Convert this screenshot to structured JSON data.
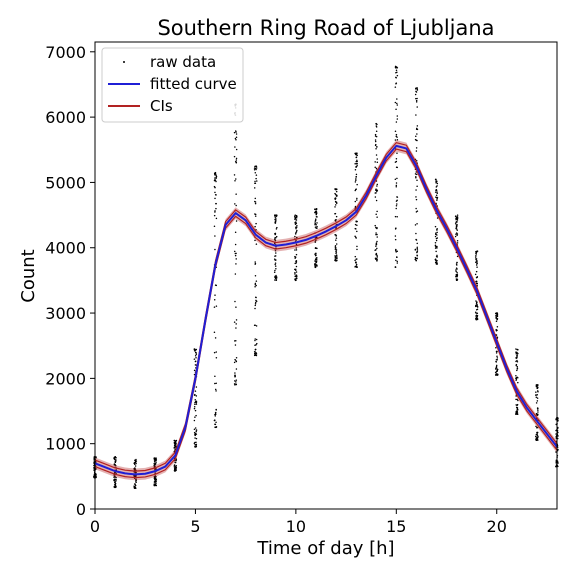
{
  "chart_data": {
    "type": "line",
    "title": "Southern Ring Road of Ljubljana",
    "xlabel": "Time of day [h]",
    "ylabel": "Count",
    "xlim": [
      0,
      23
    ],
    "ylim": [
      0,
      7150
    ],
    "x_ticks": [
      0,
      5,
      10,
      15,
      20
    ],
    "x_tick_labels": [
      "0",
      "5",
      "10",
      "15",
      "20"
    ],
    "y_ticks": [
      0,
      1000,
      2000,
      3000,
      4000,
      5000,
      6000,
      7000
    ],
    "y_tick_labels": [
      "0",
      "1000",
      "2000",
      "3000",
      "4000",
      "5000",
      "6000",
      "7000"
    ],
    "grid": false,
    "legend_position": "top-left",
    "legend": [
      {
        "label": "raw data",
        "marker": "dot",
        "color": "#000000"
      },
      {
        "label": "fitted curve",
        "marker": "line",
        "color": "#1f1fd6"
      },
      {
        "label": "CIs",
        "marker": "line",
        "color": "#b22222"
      }
    ],
    "series": [
      {
        "name": "fitted curve",
        "x": [
          0,
          0.5,
          1,
          1.5,
          2,
          2.5,
          3,
          3.5,
          4,
          4.5,
          5,
          5.5,
          6,
          6.5,
          7,
          7.5,
          8,
          8.5,
          9,
          9.5,
          10,
          10.5,
          11,
          11.5,
          12,
          12.5,
          13,
          13.5,
          14,
          14.5,
          15,
          15.5,
          16,
          16.5,
          17,
          17.5,
          18,
          18.5,
          19,
          19.5,
          20,
          20.5,
          21,
          21.5,
          22,
          22.5,
          23
        ],
        "y": [
          700,
          640,
          580,
          545,
          530,
          540,
          580,
          650,
          820,
          1250,
          2000,
          2900,
          3750,
          4350,
          4530,
          4420,
          4200,
          4080,
          4030,
          4050,
          4080,
          4120,
          4180,
          4250,
          4330,
          4420,
          4550,
          4800,
          5100,
          5380,
          5560,
          5520,
          5250,
          4900,
          4580,
          4300,
          4000,
          3680,
          3350,
          2950,
          2550,
          2150,
          1800,
          1550,
          1350,
          1150,
          950
        ]
      }
    ],
    "ci_halfwidth": 90,
    "raw_data": [
      {
        "x": 0,
        "min": 480,
        "max": 800
      },
      {
        "x": 1,
        "min": 330,
        "max": 800
      },
      {
        "x": 2,
        "min": 320,
        "max": 760
      },
      {
        "x": 3,
        "min": 360,
        "max": 780
      },
      {
        "x": 4,
        "min": 580,
        "max": 1050
      },
      {
        "x": 5,
        "min": 950,
        "max": 2450
      },
      {
        "x": 6,
        "min": 1250,
        "max": 5150
      },
      {
        "x": 7,
        "min": 1900,
        "max": 6200
      },
      {
        "x": 8,
        "min": 2350,
        "max": 5250
      },
      {
        "x": 9,
        "min": 3500,
        "max": 4500
      },
      {
        "x": 10,
        "min": 3500,
        "max": 4500
      },
      {
        "x": 11,
        "min": 3700,
        "max": 4600
      },
      {
        "x": 12,
        "min": 3800,
        "max": 4900
      },
      {
        "x": 13,
        "min": 3700,
        "max": 5450
      },
      {
        "x": 14,
        "min": 3800,
        "max": 5900
      },
      {
        "x": 15,
        "min": 3700,
        "max": 6780
      },
      {
        "x": 16,
        "min": 3800,
        "max": 6450
      },
      {
        "x": 17,
        "min": 3750,
        "max": 5050
      },
      {
        "x": 18,
        "min": 3500,
        "max": 4500
      },
      {
        "x": 19,
        "min": 2900,
        "max": 3950
      },
      {
        "x": 20,
        "min": 2050,
        "max": 3000
      },
      {
        "x": 21,
        "min": 1450,
        "max": 2450
      },
      {
        "x": 22,
        "min": 1050,
        "max": 1900
      },
      {
        "x": 23,
        "min": 650,
        "max": 1400
      }
    ]
  }
}
